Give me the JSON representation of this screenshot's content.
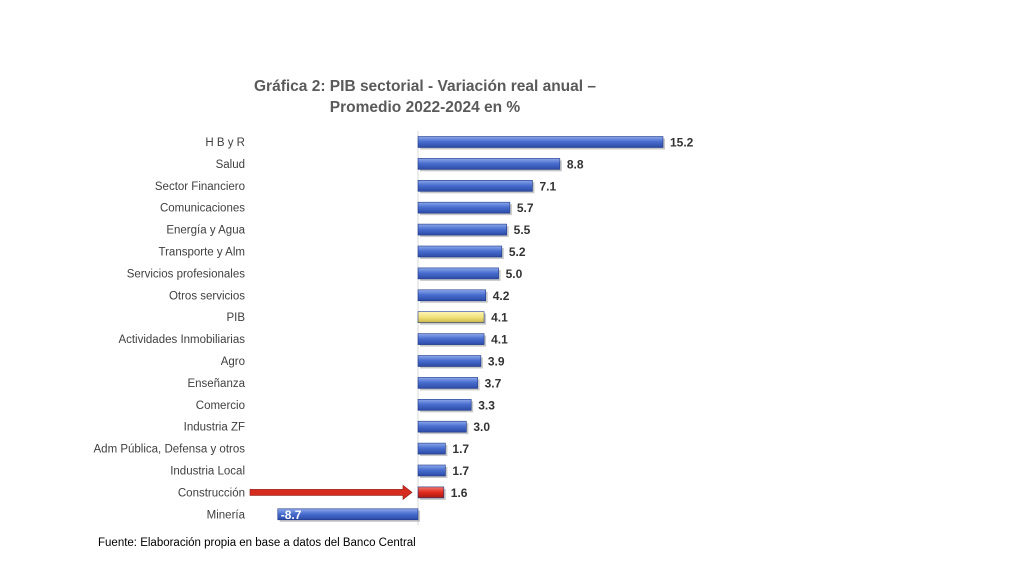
{
  "chart_data": {
    "type": "bar",
    "orientation": "horizontal",
    "title": "Gráfica 2: PIB sectorial - Variación real anual –",
    "subtitle": "Promedio 2022-2024 en %",
    "categories": [
      "H B y R",
      "Salud",
      "Sector Financiero",
      "Comunicaciones",
      "Energía y Agua",
      "Transporte y Alm",
      "Servicios profesionales",
      "Otros servicios",
      "PIB",
      "Actividades Inmobiliarias",
      "Agro",
      "Enseñanza",
      "Comercio",
      "Industria ZF",
      "Adm Pública, Defensa y otros",
      "Industria Local",
      "Construcción",
      "Minería"
    ],
    "values": [
      15.2,
      8.8,
      7.1,
      5.7,
      5.5,
      5.2,
      5.0,
      4.2,
      4.1,
      4.1,
      3.9,
      3.7,
      3.3,
      3.0,
      1.7,
      1.7,
      1.6,
      -8.7
    ],
    "data_labels": [
      "15.2",
      "8.8",
      "7.1",
      "5.7",
      "5.5",
      "5.2",
      "5.0",
      "4.2",
      "4.1",
      "4.1",
      "3.9",
      "3.7",
      "3.3",
      "3.0",
      "1.7",
      "1.7",
      "1.6",
      "-8.7"
    ],
    "highlight": {
      "PIB": "#f2e27a",
      "Construcción": "#e02a1c"
    },
    "annotation_arrow_target": "Construcción",
    "bar_color": "#4a6fd0",
    "arrow_color": "#d62b1f",
    "xlabel": "",
    "ylabel": "",
    "grid": false
  },
  "source_note": "Fuente: Elaboración propia en base a datos del Banco Central"
}
